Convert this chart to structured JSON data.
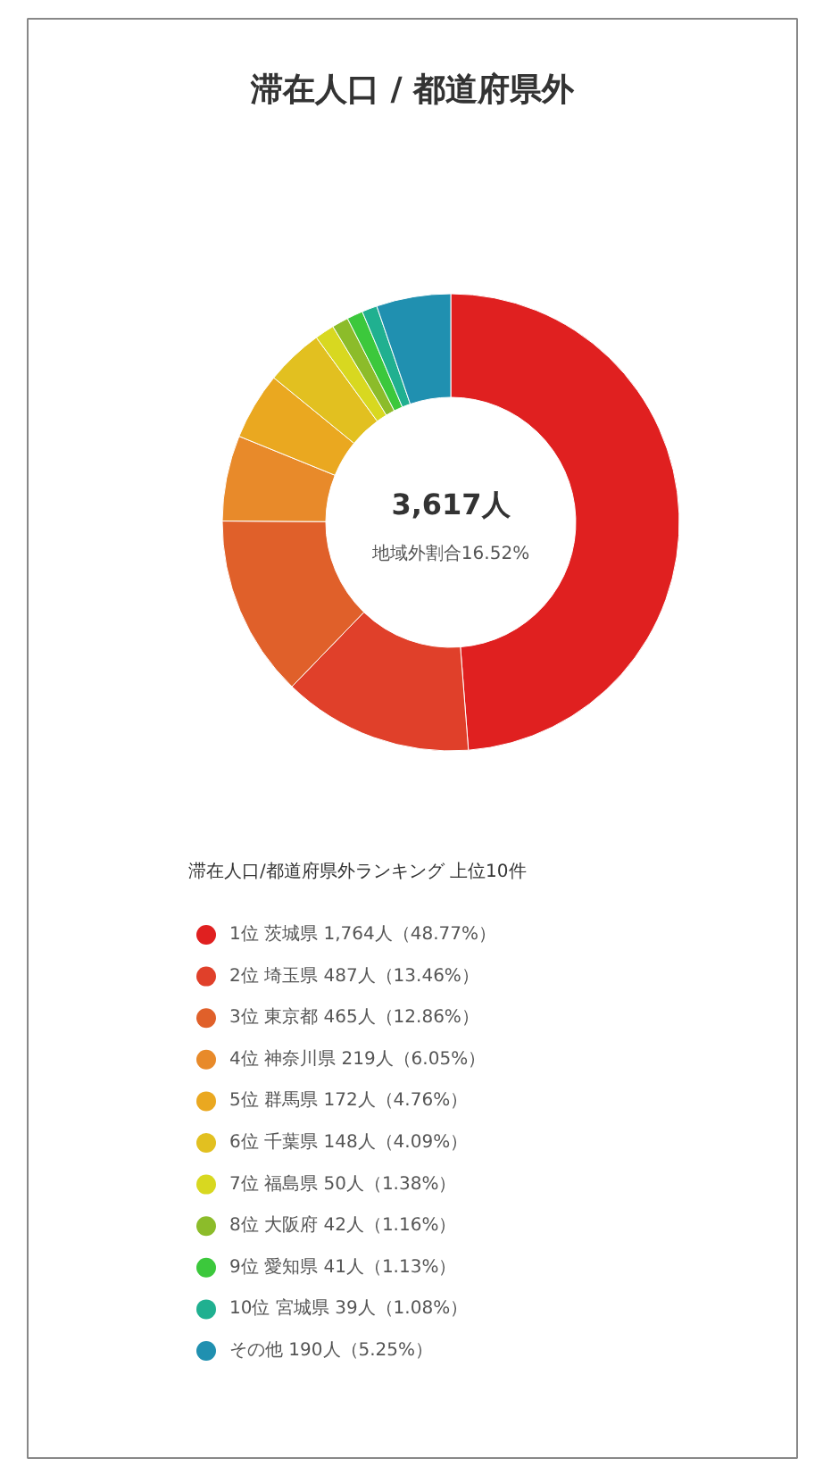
{
  "chart_data": {
    "type": "donut",
    "title": "滞在人口 / 都道府県外",
    "legend_title": "滞在人口/都道府県外ランキング 上位10件",
    "annotations": [
      "3,617人",
      "地域外割合16.52%"
    ],
    "categories": [
      "1位 茨城県 1,764人（48.77%）",
      "2位 埼玉県 487人（13.46%）",
      "3位 東京都 465人（12.86%）",
      "4位 神奈川県 219人（6.05%）",
      "5位 群馬県 172人（4.76%）",
      "6位 千葉県 148人（4.09%）",
      "7位 福島県 50人（1.38%）",
      "8位 大阪府 42人（1.16%）",
      "9位 愛知県 41人（1.13%）",
      "10位 宮城県 39人（1.08%）",
      "その他 190人（5.25%）"
    ],
    "values": [
      1764,
      487,
      465,
      219,
      172,
      148,
      50,
      42,
      41,
      39,
      190
    ],
    "colors": [
      "#e02020",
      "#e0402a",
      "#e0602a",
      "#e88a2a",
      "#eaa820",
      "#e2c020",
      "#d8d820",
      "#8cbc2a",
      "#3cc83c",
      "#20b090",
      "#2090b0"
    ],
    "legend": "bottom"
  }
}
